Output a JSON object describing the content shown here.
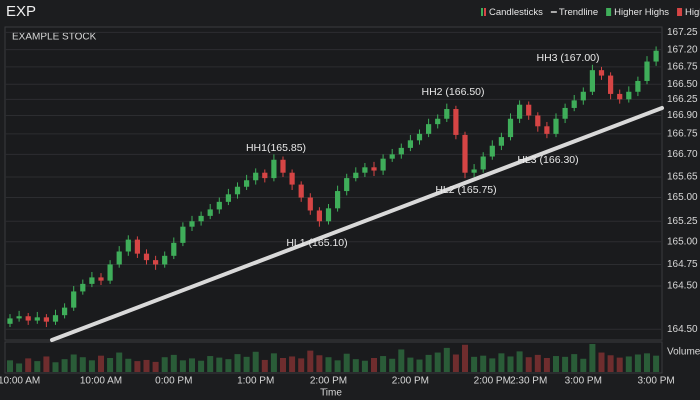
{
  "chart_data": {
    "type": "candlestick",
    "title": "EXP",
    "subtitle": "EXAMPLE STOCK",
    "x_label": "Time",
    "volume_label": "Volume",
    "legend": [
      {
        "name": "Candlesticks",
        "color": "#3fae5a"
      },
      {
        "name": "Trendline",
        "color": "#d9d9d9"
      },
      {
        "name": "Higher Highs",
        "color": "#3fae5a"
      },
      {
        "name": "Higher Lows",
        "color": "#d64545"
      }
    ],
    "up_color": "#3fae5a",
    "down_color": "#d64545",
    "annotations": [
      "HH1(165.85)",
      "HL1 (165.10)",
      "HH2 (166.50)",
      "HL2 (165.75)",
      "HL3 (166.30)",
      "HH3 (167.00)"
    ],
    "ylim": [
      164.4,
      167.3
    ],
    "yticks": [
      167.25,
      {
        "value": 167.09,
        "label": "167.20"
      },
      {
        "value": 166.93,
        "label": "166.75"
      },
      {
        "value": 166.77,
        "label": "166.50"
      },
      {
        "value": 166.63,
        "label": "166.25"
      },
      {
        "value": 166.48,
        "label": "166.90"
      },
      {
        "value": 166.31,
        "label": "166.75"
      },
      {
        "value": 166.12,
        "label": "166.70"
      },
      {
        "value": 165.91,
        "label": "165.65"
      },
      {
        "value": 165.72,
        "label": "165.00"
      },
      {
        "value": 165.5,
        "label": "165.25"
      },
      {
        "value": 165.31,
        "label": "165.00"
      },
      {
        "value": 165.1,
        "label": "164.75"
      },
      {
        "value": 164.9,
        "label": "164.50"
      },
      {
        "value": 164.5,
        "label": "164.50"
      }
    ],
    "grid": true,
    "categories": [
      null,
      "10:00 AM",
      null,
      null,
      null,
      null,
      null,
      null,
      null,
      null,
      "10:00 AM",
      null,
      null,
      null,
      null,
      null,
      null,
      null,
      "0:00 PM",
      null,
      null,
      null,
      null,
      null,
      null,
      null,
      null,
      "1:00 PM",
      null,
      null,
      null,
      null,
      null,
      null,
      null,
      "2:00 PM",
      null,
      null,
      null,
      null,
      null,
      null,
      null,
      null,
      "2:00 PM",
      null,
      null,
      null,
      null,
      null,
      null,
      null,
      null,
      "2:00 PM",
      null,
      null,
      null,
      "2:30 PM",
      null,
      null,
      null,
      null,
      null,
      "3:00 PM",
      null,
      null,
      null,
      null,
      null,
      null,
      null,
      "3:00 PM"
    ],
    "open": [
      164.55,
      164.6,
      164.62,
      164.58,
      164.61,
      164.57,
      164.63,
      164.7,
      164.85,
      164.92,
      164.98,
      164.95,
      165.1,
      165.22,
      165.33,
      165.2,
      165.14,
      165.1,
      165.18,
      165.3,
      165.45,
      165.5,
      165.55,
      165.61,
      165.68,
      165.75,
      165.82,
      165.88,
      165.95,
      165.9,
      166.07,
      165.95,
      165.84,
      165.72,
      165.6,
      165.5,
      165.62,
      165.78,
      165.9,
      165.95,
      166.0,
      165.97,
      166.08,
      166.12,
      166.18,
      166.25,
      166.31,
      166.4,
      166.45,
      166.54,
      166.3,
      165.95,
      165.98,
      166.1,
      166.2,
      166.28,
      166.45,
      166.58,
      166.48,
      166.38,
      166.31,
      166.45,
      166.55,
      166.62,
      166.7,
      166.9,
      166.85,
      166.68,
      166.63,
      166.7,
      166.8,
      166.98
    ],
    "high": [
      164.64,
      164.67,
      164.65,
      164.66,
      164.64,
      164.68,
      164.74,
      164.9,
      164.96,
      165.03,
      165.02,
      165.14,
      165.27,
      165.37,
      165.36,
      165.24,
      165.18,
      165.22,
      165.35,
      165.49,
      165.55,
      165.59,
      165.66,
      165.72,
      165.8,
      165.86,
      165.93,
      165.99,
      165.98,
      166.12,
      166.1,
      165.98,
      165.87,
      165.76,
      165.63,
      165.66,
      165.83,
      165.94,
      166.0,
      166.04,
      166.05,
      166.12,
      166.17,
      166.22,
      166.3,
      166.35,
      166.45,
      166.49,
      166.59,
      166.57,
      166.33,
      166.03,
      166.14,
      166.25,
      166.32,
      166.5,
      166.62,
      166.61,
      166.51,
      166.42,
      166.5,
      166.59,
      166.67,
      166.74,
      166.95,
      166.93,
      166.88,
      166.72,
      166.75,
      166.84,
      167.03,
      167.12
    ],
    "low": [
      164.52,
      164.57,
      164.54,
      164.55,
      164.52,
      164.54,
      164.6,
      164.67,
      164.82,
      164.89,
      164.91,
      164.92,
      165.07,
      165.18,
      165.16,
      165.1,
      165.05,
      165.07,
      165.15,
      165.27,
      165.41,
      165.46,
      165.52,
      165.57,
      165.65,
      165.71,
      165.79,
      165.84,
      165.86,
      165.87,
      165.91,
      165.79,
      165.68,
      165.56,
      165.45,
      165.47,
      165.59,
      165.74,
      165.87,
      165.91,
      165.92,
      165.93,
      166.05,
      166.08,
      166.15,
      166.21,
      166.28,
      166.36,
      166.42,
      166.26,
      165.9,
      165.91,
      165.95,
      166.07,
      166.16,
      166.25,
      166.41,
      166.44,
      166.33,
      166.27,
      166.28,
      166.41,
      166.52,
      166.58,
      166.67,
      166.81,
      166.63,
      166.59,
      166.6,
      166.66,
      166.77,
      166.94
    ],
    "close": [
      164.6,
      164.62,
      164.58,
      164.61,
      164.57,
      164.63,
      164.7,
      164.85,
      164.92,
      164.98,
      164.95,
      165.1,
      165.22,
      165.33,
      165.2,
      165.14,
      165.1,
      165.18,
      165.3,
      165.45,
      165.5,
      165.55,
      165.61,
      165.68,
      165.75,
      165.82,
      165.88,
      165.95,
      165.9,
      166.07,
      165.95,
      165.84,
      165.72,
      165.6,
      165.5,
      165.62,
      165.78,
      165.9,
      165.95,
      166.0,
      165.97,
      166.08,
      166.12,
      166.18,
      166.25,
      166.31,
      166.4,
      166.45,
      166.54,
      166.3,
      165.95,
      165.98,
      166.1,
      166.2,
      166.28,
      166.45,
      166.58,
      166.48,
      166.38,
      166.31,
      166.45,
      166.55,
      166.62,
      166.7,
      166.9,
      166.85,
      166.68,
      166.63,
      166.7,
      166.8,
      166.98,
      167.08
    ],
    "volume": [
      30,
      22,
      35,
      28,
      40,
      25,
      33,
      45,
      38,
      30,
      42,
      36,
      50,
      34,
      28,
      31,
      26,
      38,
      44,
      30,
      35,
      29,
      41,
      37,
      33,
      46,
      39,
      52,
      31,
      48,
      36,
      40,
      35,
      55,
      43,
      38,
      30,
      47,
      33,
      29,
      36,
      41,
      34,
      58,
      37,
      32,
      44,
      50,
      62,
      45,
      70,
      39,
      42,
      35,
      48,
      40,
      53,
      38,
      44,
      36,
      41,
      39,
      46,
      34,
      72,
      50,
      43,
      37,
      40,
      45,
      48,
      42
    ]
  }
}
